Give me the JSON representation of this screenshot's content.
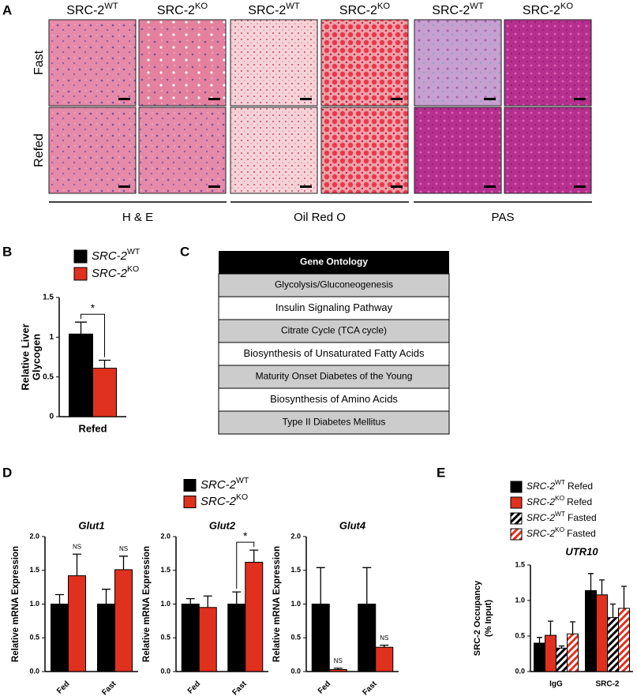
{
  "panel_labels": [
    "A",
    "B",
    "C",
    "D",
    "E"
  ],
  "histology": {
    "columns": [
      {
        "base": "SRC-2",
        "sup": "WT"
      },
      {
        "base": "SRC-2",
        "sup": "KO"
      },
      {
        "base": "SRC-2",
        "sup": "WT"
      },
      {
        "base": "SRC-2",
        "sup": "KO"
      },
      {
        "base": "SRC-2",
        "sup": "WT"
      },
      {
        "base": "SRC-2",
        "sup": "KO"
      }
    ],
    "rows": [
      "Fast",
      "Refed"
    ],
    "stains": [
      "H & E",
      "Oil Red O",
      "PAS"
    ]
  },
  "gene_ontology": {
    "header": "Gene Ontology",
    "rows": [
      "Glycolysis/Gluconeogenesis",
      "Insulin Signaling Pathway",
      "Citrate Cycle (TCA cycle)",
      "Biosynthesis of Unsaturated Fatty Acids",
      "Maturity Onset Diabetes of the Young",
      "Biosynthesis of Amino Acids",
      "Type II Diabetes Mellitus"
    ]
  },
  "chart_data": [
    {
      "type": "bar",
      "ylabel": [
        "Relative Liver",
        "Glycogen"
      ],
      "categories": [
        "Refed"
      ],
      "ylim": [
        0,
        1.5
      ],
      "yticks": [
        0,
        0.5,
        1,
        1.5
      ],
      "significance": [
        "*"
      ],
      "series": [
        {
          "name": "SRC-2",
          "name_sup": "WT",
          "color": "#000000",
          "values": [
            1.04
          ],
          "errors": [
            0.15
          ]
        },
        {
          "name": "SRC-2",
          "name_sup": "KO",
          "color": "#e0301e",
          "values": [
            0.61
          ],
          "errors": [
            0.1
          ]
        }
      ]
    },
    {
      "type": "bar",
      "title": "Glut1",
      "ylabel": "Relative mRNA Expression",
      "categories": [
        "Fed",
        "Fast"
      ],
      "ylim": [
        0,
        2.0
      ],
      "yticks": [
        {
          "value": 0,
          "label": "0.0"
        },
        {
          "value": 0.5,
          "label": "0.5"
        },
        {
          "value": 1,
          "label": "1.0"
        },
        {
          "value": 1.5,
          "label": "1.5"
        },
        {
          "value": 2,
          "label": "2.0"
        }
      ],
      "significance": [
        "NS",
        "NS"
      ],
      "series": [
        {
          "name": "SRC-2",
          "name_sup": "WT",
          "color": "#000000",
          "values": [
            1.0,
            1.0
          ],
          "errors": [
            0.14,
            0.22
          ]
        },
        {
          "name": "SRC-2",
          "name_sup": "KO",
          "color": "#e0301e",
          "values": [
            1.42,
            1.51
          ],
          "errors": [
            0.32,
            0.2
          ]
        }
      ]
    },
    {
      "type": "bar",
      "title": "Glut2",
      "ylabel": "Relative mRNA Expression",
      "categories": [
        "Fed",
        "Fast"
      ],
      "ylim": [
        0,
        2.0
      ],
      "yticks": [
        {
          "value": 0,
          "label": "0.0"
        },
        {
          "value": 0.5,
          "label": "0.5"
        },
        {
          "value": 1,
          "label": "1.0"
        },
        {
          "value": 1.5,
          "label": "1.5"
        },
        {
          "value": 2,
          "label": "2.0"
        }
      ],
      "significance": [
        null,
        "*"
      ],
      "series": [
        {
          "color": "#000000",
          "values": [
            1.0,
            1.0
          ],
          "errors": [
            0.08,
            0.18
          ]
        },
        {
          "color": "#e0301e",
          "values": [
            0.95,
            1.62
          ],
          "errors": [
            0.17,
            0.18
          ]
        }
      ]
    },
    {
      "type": "bar",
      "title": "Glut4",
      "ylabel": "Relative mRNA Expression",
      "categories": [
        "Fed",
        "Fast"
      ],
      "ylim": [
        0,
        2.0
      ],
      "yticks": [
        {
          "value": 0,
          "label": "0.0"
        },
        {
          "value": 0.5,
          "label": "0.5"
        },
        {
          "value": 1,
          "label": "1.0"
        },
        {
          "value": 1.5,
          "label": "1.5"
        },
        {
          "value": 2,
          "label": "2.0"
        }
      ],
      "significance": [
        "NS",
        "NS"
      ],
      "series": [
        {
          "color": "#000000",
          "values": [
            1.0,
            1.0
          ],
          "errors": [
            0.54,
            0.54
          ]
        },
        {
          "color": "#e0301e",
          "values": [
            0.03,
            0.36
          ],
          "errors": [
            0.02,
            0.03
          ]
        }
      ]
    },
    {
      "type": "bar",
      "title": "UTR10",
      "ylabel": [
        "SRC-2 Occupancy",
        "(% Input)"
      ],
      "categories": [
        "IgG",
        "SRC-2"
      ],
      "ylim": [
        0,
        1.5
      ],
      "yticks": [
        {
          "value": 0,
          "label": "0.0"
        },
        {
          "value": 0.5,
          "label": "0.5"
        },
        {
          "value": 1,
          "label": "1.0"
        },
        {
          "value": 1.5,
          "label": "1.5"
        }
      ],
      "series": [
        {
          "name": "SRC-2",
          "name_sup": "WT",
          "name_suffix": "Refed",
          "color": "#000000",
          "hatch": false,
          "values": [
            0.4,
            1.14
          ],
          "errors": [
            0.08,
            0.24
          ]
        },
        {
          "name": "SRC-2",
          "name_sup": "KO",
          "name_suffix": "Refed",
          "color": "#e0301e",
          "hatch": false,
          "values": [
            0.51,
            1.08
          ],
          "errors": [
            0.2,
            0.21
          ]
        },
        {
          "name": "SRC-2",
          "name_sup": "WT",
          "name_suffix": "Fasted",
          "color": "#000000",
          "hatch": true,
          "values": [
            0.33,
            0.76
          ],
          "errors": [
            0.03,
            0.19
          ]
        },
        {
          "name": "SRC-2",
          "name_sup": "KO",
          "name_suffix": "Fasted",
          "color": "#e0301e",
          "hatch": true,
          "values": [
            0.53,
            0.89
          ],
          "errors": [
            0.17,
            0.31
          ]
        }
      ]
    }
  ]
}
